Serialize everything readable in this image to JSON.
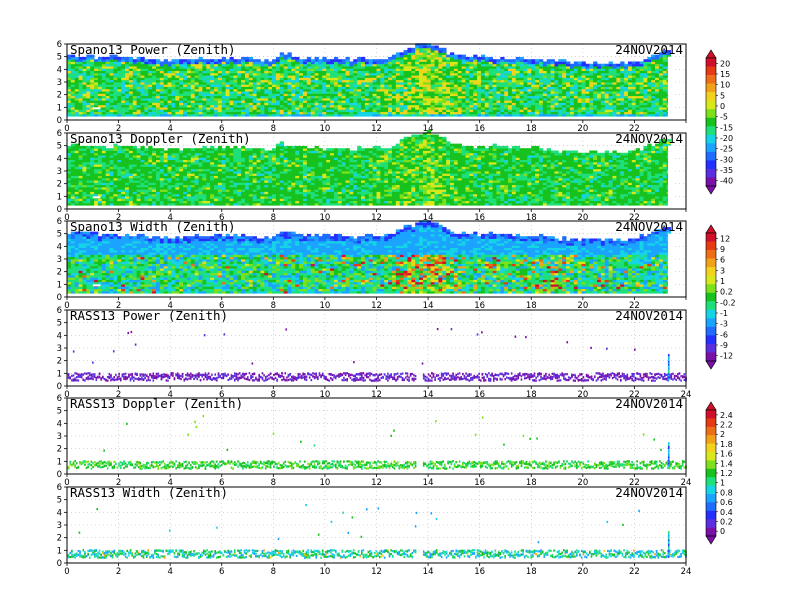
{
  "chart_data": {
    "type": "heatmap",
    "date": "24NOV2014",
    "xlim": [
      0,
      24
    ],
    "ylim": [
      0,
      6
    ],
    "x_ticks": [
      "0",
      "2",
      "4",
      "6",
      "8",
      "10",
      "12",
      "14",
      "16",
      "18",
      "20",
      "22",
      "24"
    ],
    "y_ticks": [
      "0",
      "1",
      "2",
      "3",
      "4",
      "5",
      "6"
    ],
    "colors": [
      "#7a10a8",
      "#5b2ee0",
      "#2430ff",
      "#1f6cff",
      "#1ba4ff",
      "#14d4e6",
      "#1ee07a",
      "#17c21f",
      "#7ee01a",
      "#d8e81a",
      "#f2d21c",
      "#f2a21a",
      "#ee6e18",
      "#e63a14",
      "#d0102a"
    ],
    "colorbars": [
      {
        "name": "power-doppler",
        "levels": [
          "20",
          "15",
          "10",
          "5",
          "0",
          "-5",
          "-15",
          "-20",
          "-25",
          "-30",
          "-35",
          "-40"
        ],
        "range": [
          -40,
          20
        ]
      },
      {
        "name": "width",
        "levels": [
          "12",
          "9",
          "6",
          "3",
          "1",
          "0.2",
          "-0.2",
          "-1",
          "-3",
          "-6",
          "-9",
          "-12"
        ],
        "range": [
          -12,
          12
        ]
      },
      {
        "name": "rass",
        "levels": [
          "2.4",
          "2.2",
          "2",
          "1.8",
          "1.6",
          "1.4",
          "1.2",
          "1",
          "0.8",
          "0.6",
          "0.4",
          "0.2",
          "0"
        ],
        "range": [
          0,
          2.4
        ]
      }
    ],
    "panels": [
      {
        "title": "Spano13 Power (Zenith)",
        "kind": "spano-power",
        "profile": "base",
        "x_labels_through": 22
      },
      {
        "title": "Spano13 Doppler (Zenith)",
        "kind": "spano-doppler",
        "profile": "base",
        "x_labels_through": 22
      },
      {
        "title": "Spano13 Width (Zenith)",
        "kind": "spano-width",
        "profile": "base",
        "x_labels_through": 22
      },
      {
        "title": "RASS13 Power (Zenith)",
        "kind": "rass-power",
        "profile": "rass",
        "x_labels_through": 24
      },
      {
        "title": "RASS13 Doppler (Zenith)",
        "kind": "rass-doppler",
        "profile": "rass",
        "x_labels_through": 24
      },
      {
        "title": "RASS13 Width (Zenith)",
        "kind": "rass-width",
        "profile": "rass",
        "x_labels_through": 24
      }
    ],
    "profiles": {
      "base": {
        "hours": [
          0,
          2,
          4,
          6,
          8,
          8.3,
          9,
          11,
          12.5,
          13,
          13.5,
          14,
          14.5,
          15,
          16,
          18,
          20,
          22,
          23.3
        ],
        "top_km": [
          5.0,
          4.9,
          4.6,
          4.8,
          4.6,
          5.2,
          4.8,
          4.7,
          4.8,
          5.4,
          5.7,
          6.0,
          5.6,
          5.0,
          4.9,
          4.8,
          4.4,
          4.5,
          5.5
        ]
      },
      "rass": {
        "bottom_km": 0.5,
        "top_km": 1.1
      }
    }
  }
}
